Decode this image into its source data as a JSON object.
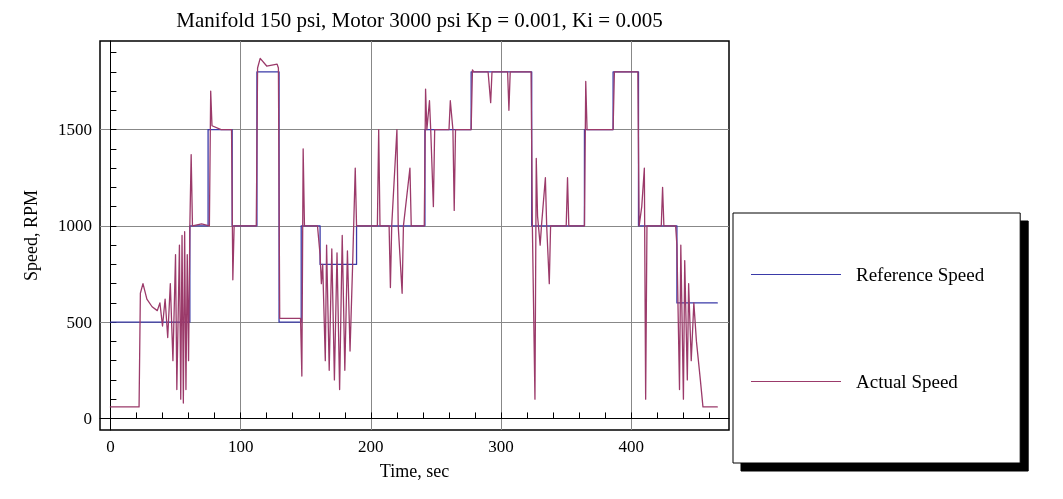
{
  "chart_data": {
    "type": "line",
    "title": "Manifold 150 psi, Motor 3000 psi Kp = 0.001, Ki = 0.005",
    "xlabel": "Time, sec",
    "ylabel": "Speed, RPM",
    "xlim": [
      -8,
      475
    ],
    "xticks": [
      0,
      {
        "value": 20,
        "label": null
      },
      {
        "value": 40,
        "label": null
      },
      {
        "value": 60,
        "label": null
      },
      {
        "value": 80,
        "label": null
      },
      100,
      {
        "value": 120,
        "label": null
      },
      {
        "value": 140,
        "label": null
      },
      {
        "value": 160,
        "label": null
      },
      {
        "value": 180,
        "label": null
      },
      200,
      {
        "value": 220,
        "label": null
      },
      {
        "value": 240,
        "label": null
      },
      {
        "value": 260,
        "label": null
      },
      {
        "value": 280,
        "label": null
      },
      300,
      {
        "value": 320,
        "label": null
      },
      {
        "value": 340,
        "label": null
      },
      {
        "value": 360,
        "label": null
      },
      {
        "value": 380,
        "label": null
      },
      400,
      {
        "value": 420,
        "label": null
      },
      {
        "value": 440,
        "label": null
      },
      {
        "value": 460,
        "label": null
      }
    ],
    "ylim": [
      -60,
      1960
    ],
    "yticks": [
      0,
      {
        "value": 100,
        "label": null
      },
      {
        "value": 200,
        "label": null
      },
      {
        "value": 300,
        "label": null
      },
      {
        "value": 400,
        "label": null
      },
      500,
      {
        "value": 600,
        "label": null
      },
      {
        "value": 700,
        "label": null
      },
      {
        "value": 800,
        "label": null
      },
      {
        "value": 900,
        "label": null
      },
      1000,
      {
        "value": 1100,
        "label": null
      },
      {
        "value": 1200,
        "label": null
      },
      {
        "value": 1300,
        "label": null
      },
      {
        "value": 1400,
        "label": null
      },
      1500,
      {
        "value": 1600,
        "label": null
      },
      {
        "value": 1700,
        "label": null
      },
      {
        "value": 1800,
        "label": null
      },
      {
        "value": 1900,
        "label": null
      }
    ],
    "grid": true,
    "legend": "right",
    "marker": "none",
    "line_style": "solid",
    "series": [
      {
        "name": "Reference Speed",
        "color": "#3a3aa8",
        "x": [
          0,
          61,
          61,
          75,
          75,
          93.5,
          93.5,
          112.5,
          112.5,
          129.5,
          129.5,
          146.5,
          146.5,
          161,
          161,
          189,
          189,
          241.5,
          241.5,
          277,
          277,
          323.5,
          323.5,
          364,
          364,
          386,
          386,
          405.5,
          405.5,
          435,
          435,
          466
        ],
        "values": [
          500,
          500,
          1000,
          1000,
          1500,
          1500,
          1000,
          1000,
          1800,
          1800,
          500,
          500,
          1000,
          1000,
          800,
          800,
          1000,
          1000,
          1500,
          1500,
          1800,
          1800,
          1000,
          1000,
          1500,
          1500,
          1800,
          1800,
          1000,
          1000,
          600,
          600
        ]
      },
      {
        "name": "Actual Speed",
        "color": "#9b3a6a",
        "x": [
          0,
          22,
          23,
          25,
          28,
          32,
          36,
          38,
          40,
          42,
          44,
          46,
          48,
          50,
          51,
          53,
          54,
          55,
          56,
          57,
          58,
          59,
          60,
          61,
          62,
          63,
          70,
          76,
          77,
          78,
          85,
          93,
          94,
          95,
          112,
          113,
          115,
          120,
          128,
          129,
          130,
          146,
          147,
          148,
          149,
          159,
          161,
          162,
          163,
          165,
          166,
          168,
          170,
          172,
          174,
          176,
          178,
          180,
          182,
          184,
          186,
          188,
          189,
          200,
          205,
          206,
          207,
          214,
          215,
          216,
          220,
          221,
          224,
          225,
          230,
          231,
          241,
          242,
          243,
          245,
          246,
          248,
          249,
          260,
          261,
          263,
          264,
          265,
          277,
          278,
          279,
          290,
          292,
          293,
          305,
          306,
          307,
          323,
          324,
          326,
          327,
          328,
          330,
          331,
          334,
          335,
          337,
          338,
          350,
          351,
          352,
          364,
          365,
          366,
          386,
          387,
          395,
          405,
          406,
          408,
          410,
          411,
          412,
          415,
          423,
          424,
          425,
          434,
          435,
          437,
          438,
          440,
          441,
          443,
          444,
          446,
          448,
          450,
          453,
          455,
          466
        ],
        "values": [
          60,
          60,
          650,
          700,
          620,
          580,
          560,
          600,
          480,
          620,
          420,
          700,
          300,
          850,
          150,
          900,
          100,
          950,
          80,
          970,
          150,
          850,
          300,
          1000,
          1370,
          1000,
          1010,
          1000,
          1700,
          1520,
          1500,
          1500,
          720,
          1000,
          1000,
          1820,
          1870,
          1830,
          1840,
          1820,
          520,
          520,
          220,
          1400,
          1000,
          1000,
          850,
          700,
          800,
          300,
          900,
          250,
          880,
          200,
          860,
          150,
          950,
          250,
          870,
          350,
          800,
          1300,
          1000,
          1000,
          1000,
          1500,
          1000,
          1000,
          680,
          1000,
          1500,
          1000,
          650,
          1000,
          1300,
          1000,
          1000,
          1710,
          1500,
          1650,
          1490,
          1100,
          1500,
          1500,
          1650,
          1500,
          1080,
          1500,
          1500,
          1810,
          1800,
          1800,
          1640,
          1800,
          1800,
          1600,
          1800,
          1800,
          1000,
          100,
          1350,
          1050,
          900,
          1000,
          1250,
          1000,
          700,
          1000,
          1000,
          1250,
          1000,
          1000,
          1750,
          1500,
          1500,
          1800,
          1800,
          1800,
          1000,
          1100,
          1300,
          100,
          1000,
          1000,
          1000,
          1200,
          1000,
          1000,
          900,
          150,
          900,
          100,
          820,
          200,
          700,
          300,
          600,
          400,
          200,
          60,
          60
        ]
      }
    ]
  }
}
